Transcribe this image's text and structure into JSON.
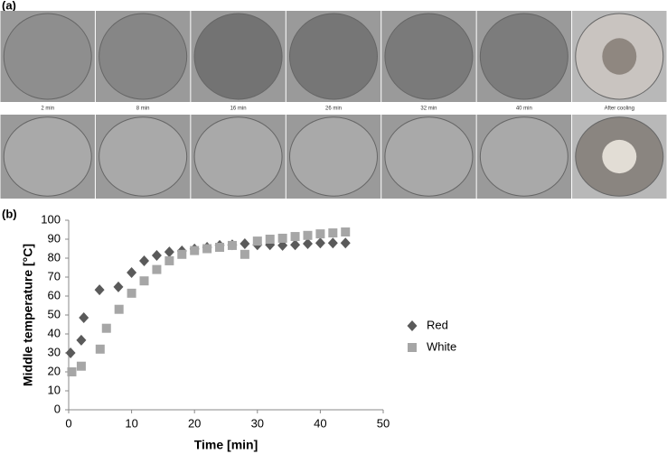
{
  "panels": {
    "a": "(a)",
    "b": "(b)"
  },
  "photo_captions": [
    "2 min",
    "8 min",
    "16 min",
    "26 min",
    "32 min",
    "40 min",
    "After cooling"
  ],
  "chart_data": {
    "type": "scatter",
    "x_label": "Time [min]",
    "y_label": "Middle temperature [°C]",
    "xlim": [
      0,
      50
    ],
    "xticks": [
      0,
      10,
      20,
      30,
      40,
      50
    ],
    "ylim": [
      0,
      100
    ],
    "yticks": [
      0,
      10,
      20,
      30,
      40,
      50,
      60,
      70,
      80,
      90,
      100
    ],
    "grid": false,
    "legend": "right",
    "series": [
      {
        "name": "Red",
        "color": "#5a5a5a",
        "marker": "diamond",
        "x": [
          0.3,
          2,
          2.4,
          4.9,
          7.9,
          10,
          12,
          14,
          16,
          18,
          20,
          22,
          24,
          26,
          28,
          30,
          32,
          34,
          36,
          38,
          40,
          42,
          44
        ],
        "values": [
          30,
          36.7,
          48.6,
          63.3,
          64.8,
          72.4,
          78.6,
          81.4,
          83.3,
          83.8,
          84.8,
          85.7,
          86.7,
          87,
          87.6,
          87,
          87,
          86.7,
          87,
          87.6,
          88,
          88,
          88
        ]
      },
      {
        "name": "White",
        "color": "#a6a6a6",
        "marker": "square",
        "x": [
          0.5,
          2,
          5,
          6,
          8,
          10,
          12,
          14,
          16,
          18,
          20,
          22,
          24,
          26,
          28,
          30,
          32,
          34,
          36,
          38,
          40,
          42,
          44
        ],
        "values": [
          20,
          23,
          32,
          43,
          53,
          61.5,
          68,
          74,
          78.6,
          82,
          84,
          85,
          85.7,
          86.7,
          82,
          89,
          90,
          90.5,
          91.4,
          92,
          92.8,
          93.3,
          93.8
        ]
      }
    ]
  }
}
